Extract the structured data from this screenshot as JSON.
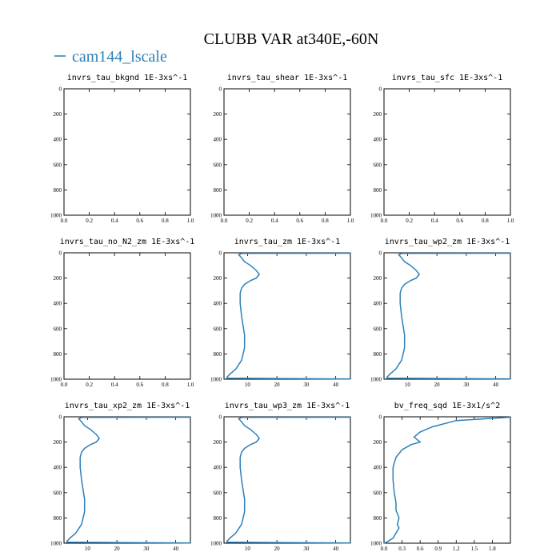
{
  "figure": {
    "title": "CLUBB VAR at340E,-60N",
    "legend": {
      "label": "cam144_lscale",
      "color": "#2c7fb8"
    }
  },
  "chart_data": [
    {
      "type": "line",
      "title": "invrs_tau_bkgnd   1E-3xs^-1",
      "xlim": [
        0,
        1.0
      ],
      "ylim": [
        1000,
        0
      ],
      "xticks": [
        "0.0",
        "0.2",
        "0.4",
        "0.6",
        "0.8",
        "1.0"
      ],
      "yticks": [
        "0",
        "200",
        "400",
        "600",
        "800",
        "1000"
      ],
      "series": []
    },
    {
      "type": "line",
      "title": "invrs_tau_shear   1E-3xs^-1",
      "xlim": [
        0,
        1.0
      ],
      "ylim": [
        1000,
        0
      ],
      "xticks": [
        "0.0",
        "0.2",
        "0.4",
        "0.6",
        "0.8",
        "1.0"
      ],
      "yticks": [
        "0",
        "200",
        "400",
        "600",
        "800",
        "1000"
      ],
      "series": []
    },
    {
      "type": "line",
      "title": "invrs_tau_sfc   1E-3xs^-1",
      "xlim": [
        0,
        1.0
      ],
      "ylim": [
        1000,
        0
      ],
      "xticks": [
        "0.0",
        "0.2",
        "0.4",
        "0.6",
        "0.8",
        "1.0"
      ],
      "yticks": [
        "0",
        "200",
        "400",
        "600",
        "800",
        "1000"
      ],
      "series": []
    },
    {
      "type": "line",
      "title": "invrs_tau_no_N2_zm   1E-3xs^-1",
      "xlim": [
        0,
        1.0
      ],
      "ylim": [
        1000,
        0
      ],
      "xticks": [
        "0.0",
        "0.2",
        "0.4",
        "0.6",
        "0.8",
        "1.0"
      ],
      "yticks": [
        "0",
        "200",
        "400",
        "600",
        "800",
        "1000"
      ],
      "series": []
    },
    {
      "type": "line",
      "title": "invrs_tau_zm   1E-3xs^-1",
      "xlim": [
        2,
        45
      ],
      "ylim": [
        1000,
        0
      ],
      "xticks": [
        "10",
        "20",
        "30",
        "40"
      ],
      "yticks": [
        "0",
        "200",
        "400",
        "600",
        "800",
        "1000"
      ],
      "series": [
        {
          "x": [
            45,
            8,
            7,
            8,
            9,
            11,
            13,
            14,
            13,
            11,
            9,
            8,
            7.5,
            7.5,
            8,
            8.5,
            9,
            9,
            9,
            8.5,
            8,
            6,
            4,
            3,
            3,
            45
          ],
          "y": [
            3,
            5,
            15,
            40,
            70,
            100,
            140,
            170,
            200,
            220,
            250,
            280,
            320,
            400,
            500,
            580,
            650,
            700,
            750,
            800,
            850,
            920,
            960,
            985,
            992,
            998
          ]
        }
      ]
    },
    {
      "type": "line",
      "title": "invrs_tau_wp2_zm   1E-3xs^-1",
      "xlim": [
        2,
        45
      ],
      "ylim": [
        1000,
        0
      ],
      "xticks": [
        "10",
        "20",
        "30",
        "40"
      ],
      "yticks": [
        "0",
        "200",
        "400",
        "600",
        "800",
        "1000"
      ],
      "series": [
        {
          "x": [
            45,
            8,
            7,
            8,
            9,
            11,
            13,
            14,
            13,
            11,
            9,
            8,
            7.5,
            7.5,
            8,
            8.5,
            9,
            9,
            9,
            8.5,
            8,
            6,
            4,
            3,
            3,
            45
          ],
          "y": [
            3,
            5,
            15,
            40,
            70,
            100,
            140,
            170,
            200,
            220,
            250,
            280,
            320,
            400,
            500,
            580,
            650,
            700,
            750,
            800,
            850,
            920,
            960,
            985,
            992,
            998
          ]
        }
      ]
    },
    {
      "type": "line",
      "title": "invrs_tau_xp2_zm   1E-3xs^-1",
      "xlim": [
        2,
        45
      ],
      "ylim": [
        1000,
        0
      ],
      "xticks": [
        "10",
        "20",
        "30",
        "40"
      ],
      "yticks": [
        "0",
        "200",
        "400",
        "600",
        "800",
        "1000"
      ],
      "series": [
        {
          "x": [
            45,
            8,
            7,
            8,
            9,
            11,
            13,
            14,
            13,
            11,
            9,
            8,
            7.5,
            7.5,
            8,
            8.5,
            9,
            9,
            9,
            8.5,
            8,
            6,
            4,
            3,
            3,
            45
          ],
          "y": [
            3,
            5,
            15,
            40,
            70,
            100,
            140,
            170,
            200,
            220,
            250,
            280,
            320,
            400,
            500,
            580,
            650,
            700,
            750,
            800,
            850,
            920,
            960,
            985,
            992,
            998
          ]
        }
      ]
    },
    {
      "type": "line",
      "title": "invrs_tau_wp3_zm   1E-3xs^-1",
      "xlim": [
        2,
        45
      ],
      "ylim": [
        1000,
        0
      ],
      "xticks": [
        "10",
        "20",
        "30",
        "40"
      ],
      "yticks": [
        "0",
        "200",
        "400",
        "600",
        "800",
        "1000"
      ],
      "series": [
        {
          "x": [
            45,
            8,
            7,
            8,
            9,
            11,
            13,
            14,
            13,
            11,
            9,
            8,
            7.5,
            7.5,
            8,
            8.5,
            9,
            9,
            9,
            8.5,
            8,
            6,
            4,
            3,
            3,
            45
          ],
          "y": [
            3,
            5,
            15,
            40,
            70,
            100,
            140,
            170,
            200,
            220,
            250,
            280,
            320,
            400,
            500,
            580,
            650,
            700,
            750,
            800,
            850,
            920,
            960,
            985,
            992,
            998
          ]
        }
      ]
    },
    {
      "type": "line",
      "title": "bv_freq_sqd   1E-3x1/s^2",
      "xlim": [
        0,
        2.1
      ],
      "ylim": [
        1000,
        0
      ],
      "xticks": [
        "0.0",
        "0.3",
        "0.6",
        "0.9",
        "1.2",
        "1.5",
        "1.8"
      ],
      "yticks": [
        "0",
        "200",
        "400",
        "600",
        "800",
        "1000"
      ],
      "series": [
        {
          "x": [
            2.1,
            1.2,
            0.8,
            0.6,
            0.5,
            0.6,
            0.45,
            0.3,
            0.2,
            0.15,
            0.15,
            0.17,
            0.2,
            0.2,
            0.25,
            0.22,
            0.25,
            0.2,
            0.15,
            0.05,
            0.0
          ],
          "y": [
            3,
            30,
            80,
            120,
            160,
            200,
            220,
            260,
            320,
            400,
            500,
            600,
            680,
            740,
            800,
            850,
            880,
            920,
            960,
            990,
            1000
          ]
        }
      ]
    }
  ]
}
